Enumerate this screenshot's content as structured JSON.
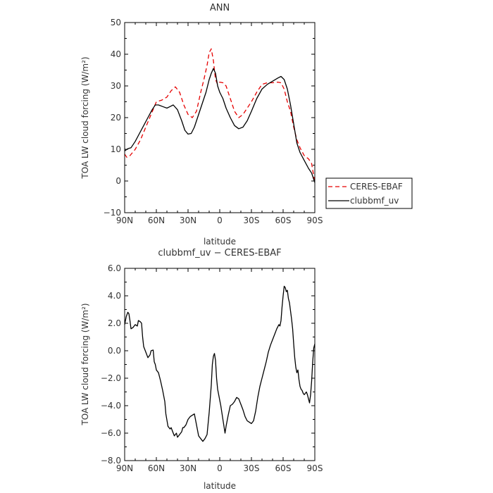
{
  "chart_data": [
    {
      "type": "line",
      "title": "ANN",
      "xlabel": "latitude",
      "ylabel": "TOA LW cloud forcing (W/m²)",
      "xlim": [
        90,
        -90
      ],
      "ylim": [
        -10,
        50
      ],
      "x_ticks": [
        90,
        60,
        30,
        0,
        -30,
        -60,
        -90
      ],
      "x_tick_labels": [
        "90N",
        "60N",
        "30N",
        "0",
        "30S",
        "60S",
        "90S"
      ],
      "y_ticks": [
        -10,
        0,
        10,
        20,
        30,
        40,
        50
      ],
      "y_tick_labels": [
        "−10",
        "0",
        "10",
        "20",
        "30",
        "40",
        "50"
      ],
      "legend_position": "right, outside plot",
      "series": [
        {
          "name": "CERES-EBAF",
          "color": "#e60000",
          "dash": "dashed",
          "points": [
            [
              90,
              8.5
            ],
            [
              88,
              7.5
            ],
            [
              85,
              8
            ],
            [
              80,
              10
            ],
            [
              75,
              13
            ],
            [
              70,
              17
            ],
            [
              65,
              21
            ],
            [
              60,
              25
            ],
            [
              55,
              25.5
            ],
            [
              50,
              26.5
            ],
            [
              46,
              28.5
            ],
            [
              42,
              29.7
            ],
            [
              38,
              28
            ],
            [
              34,
              24
            ],
            [
              30,
              21
            ],
            [
              26,
              20
            ],
            [
              22,
              22
            ],
            [
              18,
              28
            ],
            [
              15,
              32
            ],
            [
              12,
              36.5
            ],
            [
              10,
              40.5
            ],
            [
              8,
              41.7
            ],
            [
              6,
              38
            ],
            [
              4,
              32
            ],
            [
              2,
              30.5
            ],
            [
              0,
              31.2
            ],
            [
              -3,
              31
            ],
            [
              -6,
              30
            ],
            [
              -10,
              26
            ],
            [
              -14,
              22
            ],
            [
              -18,
              20
            ],
            [
              -22,
              21
            ],
            [
              -26,
              23
            ],
            [
              -30,
              25
            ],
            [
              -35,
              28
            ],
            [
              -40,
              30.5
            ],
            [
              -45,
              31
            ],
            [
              -50,
              31
            ],
            [
              -55,
              31.2
            ],
            [
              -58,
              31
            ],
            [
              -61,
              29
            ],
            [
              -64,
              25
            ],
            [
              -67,
              22
            ],
            [
              -70,
              17
            ],
            [
              -73,
              13
            ],
            [
              -76,
              10.5
            ],
            [
              -80,
              8
            ],
            [
              -84,
              7
            ],
            [
              -87,
              5.5
            ],
            [
              -90,
              -0.5
            ]
          ]
        },
        {
          "name": "clubbmf_uv",
          "color": "#000000",
          "dash": "solid",
          "points": [
            [
              90,
              9.5
            ],
            [
              87,
              10.2
            ],
            [
              84,
              10.5
            ],
            [
              80,
              12.5
            ],
            [
              76,
              15
            ],
            [
              72,
              17.5
            ],
            [
              68,
              20
            ],
            [
              64,
              22.5
            ],
            [
              61,
              24
            ],
            [
              58,
              24
            ],
            [
              54,
              23.5
            ],
            [
              50,
              23
            ],
            [
              47,
              23.5
            ],
            [
              44,
              24
            ],
            [
              40,
              22.5
            ],
            [
              36,
              19
            ],
            [
              33,
              16
            ],
            [
              30,
              14.8
            ],
            [
              27,
              15
            ],
            [
              24,
              17
            ],
            [
              20,
              21
            ],
            [
              16,
              25
            ],
            [
              13,
              28
            ],
            [
              10,
              32
            ],
            [
              8,
              34
            ],
            [
              6,
              35.5
            ],
            [
              4,
              34
            ],
            [
              2,
              30
            ],
            [
              0,
              28
            ],
            [
              -3,
              26
            ],
            [
              -6,
              23
            ],
            [
              -10,
              20
            ],
            [
              -14,
              17.5
            ],
            [
              -18,
              16.5
            ],
            [
              -22,
              17
            ],
            [
              -26,
              19
            ],
            [
              -30,
              22
            ],
            [
              -35,
              26
            ],
            [
              -40,
              29
            ],
            [
              -45,
              30.5
            ],
            [
              -50,
              31.5
            ],
            [
              -55,
              32.5
            ],
            [
              -58,
              33
            ],
            [
              -61,
              32
            ],
            [
              -64,
              29
            ],
            [
              -67,
              24
            ],
            [
              -70,
              18
            ],
            [
              -73,
              12
            ],
            [
              -76,
              9
            ],
            [
              -80,
              6.5
            ],
            [
              -84,
              4
            ],
            [
              -87,
              2.5
            ],
            [
              -90,
              -0.5
            ]
          ]
        }
      ]
    },
    {
      "type": "line",
      "title": "clubbmf_uv − CERES-EBAF",
      "xlabel": "latitude",
      "ylabel": "TOA LW cloud forcing (W/m²)",
      "xlim": [
        90,
        -90
      ],
      "ylim": [
        -8,
        6
      ],
      "x_ticks": [
        90,
        60,
        30,
        0,
        -30,
        -60,
        -90
      ],
      "x_tick_labels": [
        "90N",
        "60N",
        "30N",
        "0",
        "30S",
        "60S",
        "90S"
      ],
      "y_ticks": [
        -8,
        -6,
        -4,
        -2,
        0,
        2,
        4,
        6
      ],
      "y_tick_labels": [
        "−8.0",
        "−6.0",
        "−4.0",
        "−2.0",
        "0.0",
        "2.0",
        "4.0",
        "6.0"
      ],
      "series": [
        {
          "name": "",
          "color": "#000000",
          "dash": "solid",
          "points": [
            [
              90,
              1.9
            ],
            [
              88.5,
              2.5
            ],
            [
              87,
              2.8
            ],
            [
              86,
              2.7
            ],
            [
              85,
              2.2
            ],
            [
              84,
              1.6
            ],
            [
              82,
              1.7
            ],
            [
              80,
              1.9
            ],
            [
              78,
              1.8
            ],
            [
              77,
              2.2
            ],
            [
              75,
              2.1
            ],
            [
              74,
              2.0
            ],
            [
              73,
              1.0
            ],
            [
              72,
              0.3
            ],
            [
              70,
              -0.1
            ],
            [
              68,
              -0.5
            ],
            [
              66,
              -0.3
            ],
            [
              65,
              0.0
            ],
            [
              63,
              0.05
            ],
            [
              62,
              -0.8
            ],
            [
              61,
              -1.0
            ],
            [
              60,
              -1.4
            ],
            [
              58,
              -1.6
            ],
            [
              56,
              -2.2
            ],
            [
              54,
              -2.9
            ],
            [
              52,
              -3.7
            ],
            [
              51,
              -4.6
            ],
            [
              49,
              -5.5
            ],
            [
              47,
              -5.7
            ],
            [
              46,
              -5.6
            ],
            [
              45,
              -5.8
            ],
            [
              43,
              -6.2
            ],
            [
              41,
              -6.0
            ],
            [
              40,
              -6.3
            ],
            [
              38,
              -6.1
            ],
            [
              36,
              -5.9
            ],
            [
              35,
              -5.6
            ],
            [
              34,
              -5.6
            ],
            [
              32,
              -5.4
            ],
            [
              30,
              -5.0
            ],
            [
              28,
              -4.8
            ],
            [
              26,
              -4.7
            ],
            [
              24,
              -4.6
            ],
            [
              22,
              -5.4
            ],
            [
              20,
              -6.2
            ],
            [
              18,
              -6.4
            ],
            [
              16,
              -6.6
            ],
            [
              14,
              -6.4
            ],
            [
              12,
              -6.1
            ],
            [
              10,
              -4.5
            ],
            [
              8,
              -2.5
            ],
            [
              7,
              -1.0
            ],
            [
              6,
              -0.4
            ],
            [
              5,
              -0.2
            ],
            [
              4,
              -0.7
            ],
            [
              3,
              -2.0
            ],
            [
              2,
              -2.8
            ],
            [
              0,
              -3.6
            ],
            [
              -1,
              -4.0
            ],
            [
              -2,
              -4.5
            ],
            [
              -4,
              -5.5
            ],
            [
              -5,
              -6.0
            ],
            [
              -6,
              -5.5
            ],
            [
              -8,
              -4.7
            ],
            [
              -10,
              -4.0
            ],
            [
              -12,
              -3.9
            ],
            [
              -14,
              -3.7
            ],
            [
              -16,
              -3.4
            ],
            [
              -18,
              -3.5
            ],
            [
              -20,
              -3.9
            ],
            [
              -22,
              -4.3
            ],
            [
              -24,
              -4.8
            ],
            [
              -26,
              -5.1
            ],
            [
              -28,
              -5.2
            ],
            [
              -30,
              -5.3
            ],
            [
              -32,
              -5.1
            ],
            [
              -34,
              -4.4
            ],
            [
              -36,
              -3.4
            ],
            [
              -38,
              -2.6
            ],
            [
              -40,
              -2.0
            ],
            [
              -42,
              -1.4
            ],
            [
              -44,
              -0.8
            ],
            [
              -46,
              -0.1
            ],
            [
              -48,
              0.4
            ],
            [
              -50,
              0.8
            ],
            [
              -52,
              1.2
            ],
            [
              -54,
              1.6
            ],
            [
              -56,
              1.9
            ],
            [
              -57,
              1.8
            ],
            [
              -58,
              2.2
            ],
            [
              -59,
              3.2
            ],
            [
              -60,
              4.0
            ],
            [
              -61,
              4.7
            ],
            [
              -62,
              4.6
            ],
            [
              -63,
              4.3
            ],
            [
              -64,
              4.4
            ],
            [
              -65,
              3.8
            ],
            [
              -66,
              3.5
            ],
            [
              -67,
              2.9
            ],
            [
              -68,
              2.3
            ],
            [
              -69,
              1.6
            ],
            [
              -70,
              0.5
            ],
            [
              -71,
              -0.5
            ],
            [
              -72,
              -1.2
            ],
            [
              -73,
              -1.6
            ],
            [
              -74,
              -1.4
            ],
            [
              -75,
              -2.1
            ],
            [
              -76,
              -2.6
            ],
            [
              -77,
              -2.8
            ],
            [
              -78,
              -2.9
            ],
            [
              -79,
              -3.1
            ],
            [
              -80,
              -3.2
            ],
            [
              -81,
              -3.1
            ],
            [
              -82,
              -3.0
            ],
            [
              -83,
              -3.2
            ],
            [
              -84,
              -3.5
            ],
            [
              -85,
              -3.8
            ],
            [
              -86,
              -3.2
            ],
            [
              -87,
              -2.2
            ],
            [
              -88,
              -0.8
            ],
            [
              -89,
              0.2
            ],
            [
              -90,
              0.5
            ]
          ]
        }
      ]
    }
  ]
}
